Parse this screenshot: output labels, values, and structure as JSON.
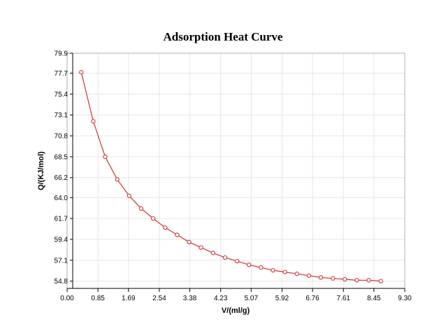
{
  "chart_data": {
    "type": "line",
    "title": "Adsorption Heat Curve",
    "xlabel": "V/(ml/g)",
    "ylabel": "Q/(KJ/mol)",
    "xlim": [
      0.0,
      9.3
    ],
    "ylim": [
      54.0,
      79.9
    ],
    "x_ticks": [
      "0.00",
      "0.85",
      "1.69",
      "2.54",
      "3.38",
      "4.23",
      "5.07",
      "5.92",
      "6.76",
      "7.61",
      "8.45",
      "9.30"
    ],
    "y_ticks": [
      "54.8",
      "57.1",
      "59.4",
      "61.7",
      "64.0",
      "66.2",
      "68.5",
      "70.8",
      "73.1",
      "75.4",
      "77.7",
      "79.9"
    ],
    "grid": true,
    "series": [
      {
        "name": "Adsorption Heat",
        "color": "#cc3333",
        "x": [
          0.39,
          0.72,
          1.05,
          1.38,
          1.71,
          2.04,
          2.37,
          2.7,
          3.03,
          3.36,
          3.69,
          4.02,
          4.35,
          4.68,
          5.01,
          5.34,
          5.67,
          6.0,
          6.33,
          6.66,
          6.99,
          7.32,
          7.65,
          7.98,
          8.31,
          8.64
        ],
        "y": [
          77.8,
          72.4,
          68.5,
          66.0,
          64.2,
          62.8,
          61.7,
          60.7,
          59.9,
          59.1,
          58.5,
          57.9,
          57.4,
          57.0,
          56.6,
          56.3,
          56.0,
          55.8,
          55.6,
          55.4,
          55.2,
          55.1,
          55.0,
          54.9,
          54.9,
          54.8
        ]
      }
    ]
  }
}
